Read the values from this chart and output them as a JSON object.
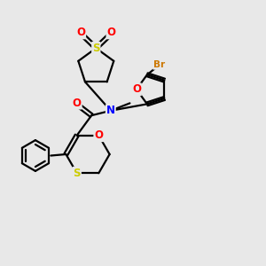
{
  "bg_color": "#e8e8e8",
  "bond_color": "#000000",
  "bond_width": 1.6,
  "atom_colors": {
    "S": "#cccc00",
    "O": "#ff0000",
    "N": "#0000ff",
    "Br": "#cc7700",
    "C": "#000000"
  },
  "font_size_atom": 8.5,
  "font_size_br": 7.5,
  "xlim": [
    0,
    10
  ],
  "ylim": [
    0,
    10
  ]
}
